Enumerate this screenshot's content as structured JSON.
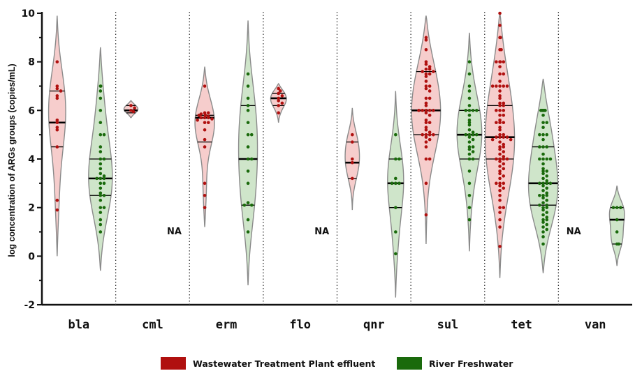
{
  "chart_data": {
    "type": "violin",
    "ylabel": "log concentration of ARGs groups (copies/mL)",
    "ylim": [
      -2,
      10
    ],
    "yticks": [
      "-2",
      "0",
      "2",
      "4",
      "6",
      "8",
      "10"
    ],
    "categories": [
      "bla",
      "cml",
      "erm",
      "flo",
      "qnr",
      "sul",
      "tet",
      "van"
    ],
    "na_label": "NA",
    "series": [
      {
        "name": "Wastewater Treatment Plant effluent",
        "color": "#b0100f",
        "fill": "#f6cdcc",
        "groups": [
          {
            "category": "bla",
            "range": [
              0,
              9.9
            ],
            "median": 5.5,
            "q1": 4.5,
            "q3": 6.8,
            "points": [
              8.0,
              7.0,
              6.9,
              6.8,
              6.6,
              6.5,
              5.6,
              5.5,
              5.3,
              5.2,
              4.5,
              2.3,
              1.9
            ]
          },
          {
            "category": "cml",
            "range": [
              5.7,
              6.4
            ],
            "median": 6.0,
            "q1": 5.9,
            "q3": 6.2,
            "points": [
              6.2,
              6.1,
              6.0,
              5.95
            ]
          },
          {
            "category": "erm",
            "range": [
              1.2,
              7.8
            ],
            "median": 5.7,
            "q1": 4.7,
            "q3": 5.8,
            "points": [
              7.0,
              5.9,
              5.9,
              5.85,
              5.8,
              5.8,
              5.75,
              5.7,
              5.7,
              5.7,
              5.65,
              5.6,
              5.5,
              5.5,
              5.2,
              4.8,
              4.5,
              3.0,
              2.5,
              2.0
            ]
          },
          {
            "category": "flo",
            "range": [
              5.5,
              7.1
            ],
            "median": 6.5,
            "q1": 6.2,
            "q3": 6.7,
            "points": [
              6.9,
              6.8,
              6.7,
              6.6,
              6.5,
              6.4,
              6.3,
              6.2,
              5.9
            ]
          },
          {
            "category": "qnr",
            "range": [
              1.9,
              6.1
            ],
            "median": 3.85,
            "q1": 3.2,
            "q3": 4.7,
            "points": [
              5.0,
              4.7,
              4.0,
              3.85,
              3.2
            ]
          },
          {
            "category": "sul",
            "range": [
              0.5,
              9.9
            ],
            "median": 6.0,
            "q1": 5.0,
            "q3": 7.6,
            "points": [
              9.0,
              8.9,
              8.5,
              8.0,
              7.9,
              7.8,
              7.7,
              7.7,
              7.6,
              7.6,
              7.5,
              7.5,
              7.4,
              7.2,
              7.0,
              7.0,
              6.9,
              6.8,
              6.5,
              6.5,
              6.3,
              6.2,
              6.0,
              6.0,
              6.0,
              6.0,
              6.0,
              5.9,
              5.8,
              5.6,
              5.5,
              5.5,
              5.3,
              5.2,
              5.1,
              5.0,
              5.0,
              5.0,
              5.0,
              4.9,
              4.8,
              4.7,
              4.5,
              4.0,
              4.0,
              3.0,
              1.7
            ]
          },
          {
            "category": "tet",
            "range": [
              -0.9,
              10.0
            ],
            "median": 4.9,
            "q1": 4.0,
            "q3": 6.2,
            "points": [
              10.0,
              9.5,
              9.0,
              9.0,
              8.5,
              8.5,
              8.0,
              8.0,
              8.0,
              8.0,
              7.8,
              7.5,
              7.5,
              7.2,
              7.0,
              7.0,
              7.0,
              7.0,
              7.0,
              6.8,
              6.6,
              6.5,
              6.3,
              6.3,
              6.2,
              6.2,
              6.0,
              6.0,
              6.0,
              5.8,
              5.8,
              5.6,
              5.5,
              5.5,
              5.5,
              5.3,
              5.2,
              5.0,
              5.0,
              4.9,
              4.9,
              4.9,
              4.9,
              4.8,
              4.8,
              4.7,
              4.6,
              4.5,
              4.5,
              4.4,
              4.3,
              4.2,
              4.1,
              4.0,
              4.0,
              4.0,
              4.0,
              3.9,
              3.8,
              3.7,
              3.6,
              3.5,
              3.4,
              3.3,
              3.2,
              3.0,
              3.0,
              3.0,
              2.9,
              2.8,
              2.7,
              2.5,
              2.3,
              2.0,
              2.0,
              1.8,
              1.5,
              1.2,
              0.4
            ]
          }
        ]
      },
      {
        "name": "River Freshwater",
        "color": "#1a6a0c",
        "fill": "#cfe5ca",
        "groups": [
          {
            "category": "bla",
            "range": [
              -0.6,
              8.6
            ],
            "median": 3.2,
            "q1": 2.5,
            "q3": 4.0,
            "points": [
              7.0,
              7.0,
              6.8,
              6.5,
              6.0,
              5.5,
              5.0,
              5.0,
              4.5,
              4.3,
              4.0,
              4.0,
              3.8,
              3.6,
              3.4,
              3.3,
              3.2,
              3.2,
              3.2,
              3.0,
              3.0,
              2.8,
              2.6,
              2.5,
              2.5,
              2.3,
              2.0,
              2.0,
              1.8,
              1.5,
              1.3,
              1.0
            ]
          },
          {
            "category": "erm",
            "range": [
              -1.2,
              9.7
            ],
            "median": 4.0,
            "q1": 2.1,
            "q3": 6.2,
            "points": [
              7.5,
              7.0,
              6.5,
              6.2,
              6.0,
              5.5,
              5.0,
              5.0,
              4.5,
              4.0,
              4.0,
              3.5,
              3.0,
              2.2,
              2.1,
              2.1,
              1.5,
              1.0
            ]
          },
          {
            "category": "qnr",
            "range": [
              -1.7,
              6.8
            ],
            "median": 3.0,
            "q1": 2.0,
            "q3": 4.0,
            "points": [
              5.0,
              4.0,
              4.0,
              3.2,
              3.0,
              3.0,
              3.0,
              2.0,
              1.0,
              0.1
            ]
          },
          {
            "category": "sul",
            "range": [
              0.2,
              9.2
            ],
            "median": 5.0,
            "q1": 4.0,
            "q3": 6.0,
            "points": [
              8.0,
              7.5,
              7.0,
              6.8,
              6.5,
              6.2,
              6.0,
              6.0,
              6.0,
              6.0,
              5.8,
              5.6,
              5.5,
              5.4,
              5.2,
              5.1,
              5.0,
              5.0,
              5.0,
              5.0,
              4.9,
              4.8,
              4.7,
              4.5,
              4.5,
              4.4,
              4.3,
              4.2,
              4.0,
              4.0,
              3.5,
              3.0,
              2.5,
              2.0,
              1.5
            ]
          },
          {
            "category": "tet",
            "range": [
              -0.7,
              7.3
            ],
            "median": 3.0,
            "q1": 2.1,
            "q3": 4.5,
            "points": [
              6.0,
              6.0,
              6.0,
              6.0,
              6.0,
              6.0,
              6.0,
              5.8,
              5.5,
              5.5,
              5.3,
              5.0,
              5.0,
              5.0,
              4.8,
              4.5,
              4.5,
              4.5,
              4.2,
              4.0,
              4.0,
              4.0,
              4.0,
              3.8,
              3.6,
              3.5,
              3.5,
              3.4,
              3.3,
              3.2,
              3.1,
              3.0,
              3.0,
              3.0,
              3.0,
              2.9,
              2.8,
              2.7,
              2.6,
              2.5,
              2.5,
              2.5,
              2.4,
              2.3,
              2.2,
              2.1,
              2.1,
              2.0,
              2.0,
              1.9,
              1.8,
              1.7,
              1.6,
              1.5,
              1.5,
              1.4,
              1.3,
              1.2,
              1.1,
              1.0,
              0.8,
              0.5
            ]
          },
          {
            "category": "van",
            "range": [
              -0.4,
              2.9
            ],
            "median": 1.5,
            "q1": 0.5,
            "q3": 2.0,
            "points": [
              2.0,
              2.0,
              2.0,
              1.5,
              1.0,
              0.5,
              0.5
            ]
          }
        ]
      }
    ],
    "na_groups": [
      {
        "category": "cml",
        "series": "River Freshwater"
      },
      {
        "category": "flo",
        "series": "River Freshwater"
      },
      {
        "category": "van",
        "series": "Wastewater Treatment Plant effluent"
      }
    ],
    "grid": false,
    "legend_position": "bottom"
  }
}
